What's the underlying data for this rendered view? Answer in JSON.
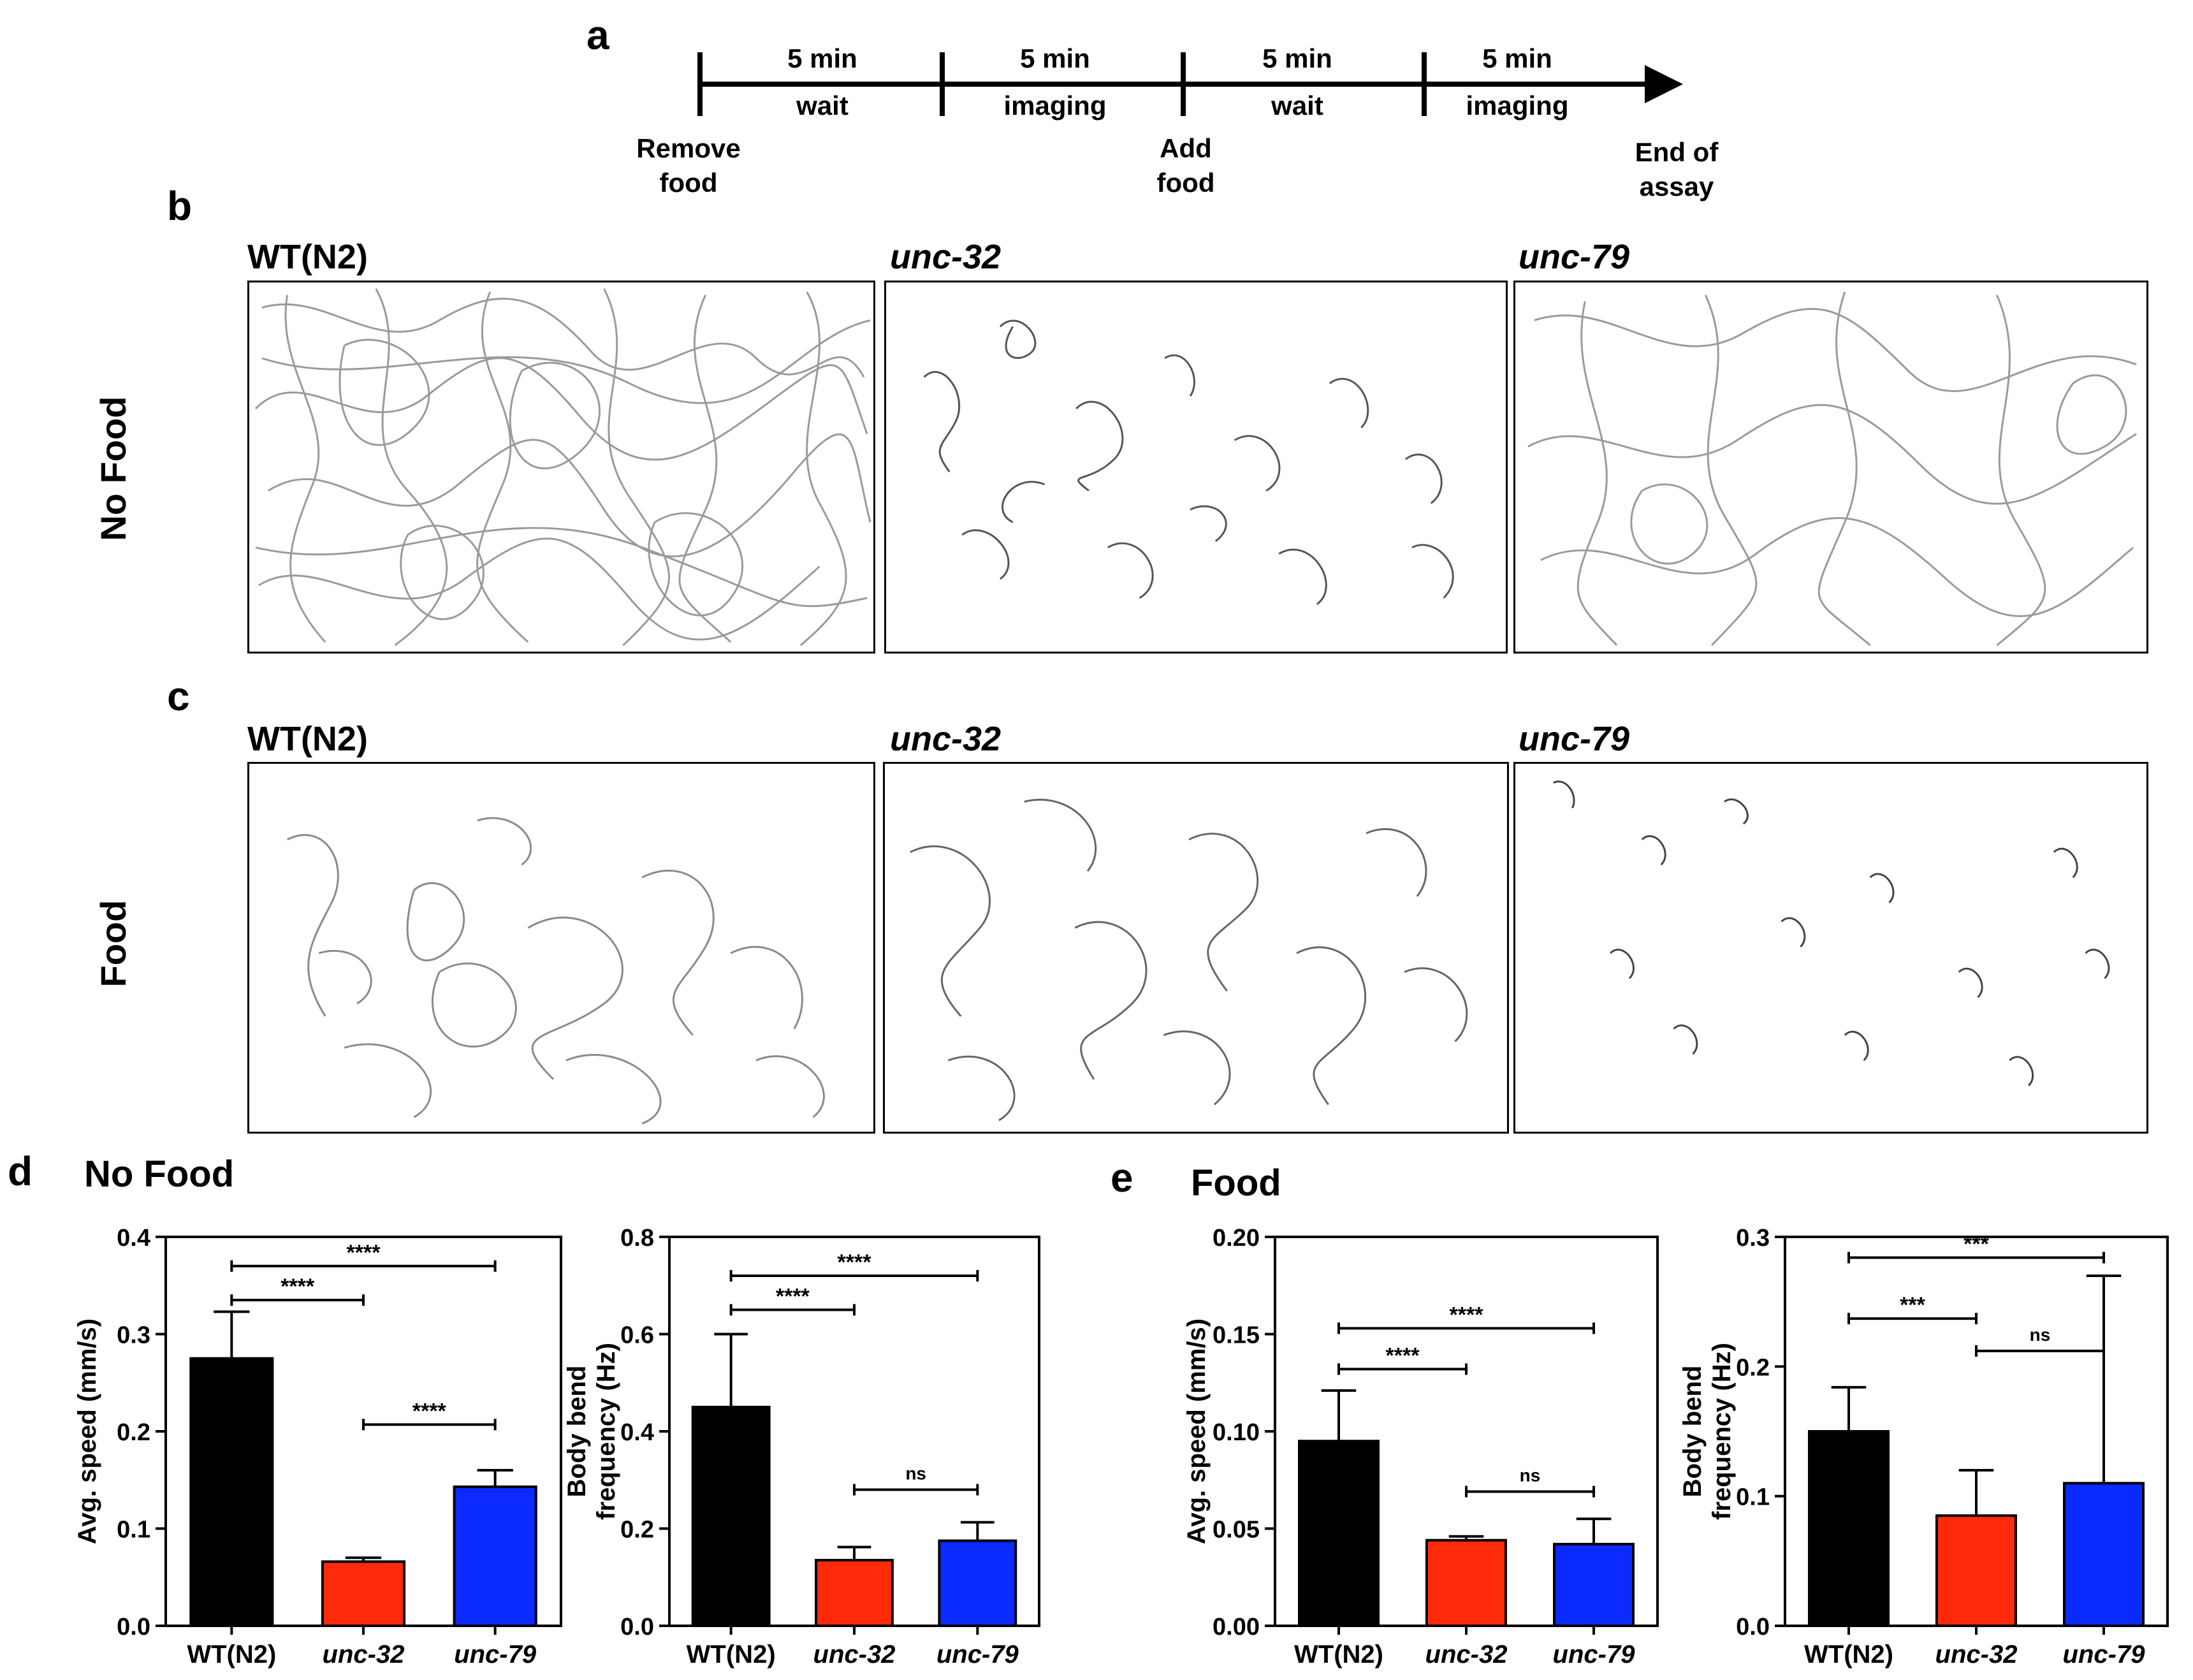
{
  "panel_labels": {
    "a": "a",
    "b": "b",
    "c": "c",
    "d": "d",
    "e": "e"
  },
  "timeline": {
    "segments_top": [
      "5 min",
      "5 min",
      "5 min",
      "5 min"
    ],
    "segments_bottom": [
      "wait",
      "imaging",
      "wait",
      "imaging"
    ],
    "events": [
      "Remove\nfood",
      "Add\nfood",
      "End of\nassay"
    ]
  },
  "strains": {
    "wt": "WT(N2)",
    "unc32": "unc-32",
    "unc79": "unc-79"
  },
  "row_labels": {
    "no_food": "No Food",
    "food": "Food"
  },
  "section_titles": {
    "d": "No Food",
    "e": "Food"
  },
  "colors": {
    "wt": "#000000",
    "unc32": "#ff2a0a",
    "unc79": "#0a2aff"
  },
  "chart_data": [
    {
      "id": "d_speed",
      "type": "bar",
      "title": "",
      "categories": [
        "WT(N2)",
        "unc-32",
        "unc-79"
      ],
      "values": [
        0.275,
        0.066,
        0.143
      ],
      "errors": [
        0.048,
        0.004,
        0.017
      ],
      "ylabel": "Avg. speed (mm/s)",
      "ylim": [
        0,
        0.4
      ],
      "yticks": [
        "0.0",
        "0.1",
        "0.2",
        "0.3",
        "0.4"
      ],
      "brackets": [
        {
          "from": 0,
          "to": 2,
          "y": 0.37,
          "label": "****"
        },
        {
          "from": 0,
          "to": 1,
          "y": 0.335,
          "label": "****"
        },
        {
          "from": 1,
          "to": 2,
          "y": 0.207,
          "label": "****"
        }
      ]
    },
    {
      "id": "d_bend",
      "type": "bar",
      "title": "",
      "categories": [
        "WT(N2)",
        "unc-32",
        "unc-79"
      ],
      "values": [
        0.45,
        0.135,
        0.175
      ],
      "errors": [
        0.15,
        0.027,
        0.038
      ],
      "ylabel": "Body bend frequency (Hz)",
      "ylim": [
        0,
        0.8
      ],
      "yticks": [
        "0.0",
        "0.2",
        "0.4",
        "0.6",
        "0.8"
      ],
      "brackets": [
        {
          "from": 0,
          "to": 2,
          "y": 0.72,
          "label": "****"
        },
        {
          "from": 0,
          "to": 1,
          "y": 0.65,
          "label": "****"
        },
        {
          "from": 1,
          "to": 2,
          "y": 0.28,
          "label": "ns"
        }
      ]
    },
    {
      "id": "e_speed",
      "type": "bar",
      "title": "",
      "categories": [
        "WT(N2)",
        "unc-32",
        "unc-79"
      ],
      "values": [
        0.095,
        0.044,
        0.042
      ],
      "errors": [
        0.026,
        0.002,
        0.013
      ],
      "ylabel": "Avg. speed (mm/s)",
      "ylim": [
        0,
        0.2
      ],
      "yticks": [
        "0.00",
        "0.05",
        "0.10",
        "0.15",
        "0.20"
      ],
      "brackets": [
        {
          "from": 0,
          "to": 2,
          "y": 0.153,
          "label": "****"
        },
        {
          "from": 0,
          "to": 1,
          "y": 0.132,
          "label": "****"
        },
        {
          "from": 1,
          "to": 2,
          "y": 0.069,
          "label": "ns"
        }
      ]
    },
    {
      "id": "e_bend",
      "type": "bar",
      "title": "",
      "categories": [
        "WT(N2)",
        "unc-32",
        "unc-79"
      ],
      "values": [
        0.15,
        0.085,
        0.11
      ],
      "errors": [
        0.034,
        0.035,
        0.16
      ],
      "ylabel": "Body bend frequency (Hz)",
      "ylim": [
        0,
        0.3
      ],
      "yticks": [
        "0.0",
        "0.1",
        "0.2",
        "0.3"
      ],
      "brackets": [
        {
          "from": 0,
          "to": 2,
          "y": 0.284,
          "label": "***"
        },
        {
          "from": 0,
          "to": 1,
          "y": 0.237,
          "label": "***"
        },
        {
          "from": 1,
          "to": 2,
          "y": 0.212,
          "label": "ns"
        }
      ]
    }
  ]
}
